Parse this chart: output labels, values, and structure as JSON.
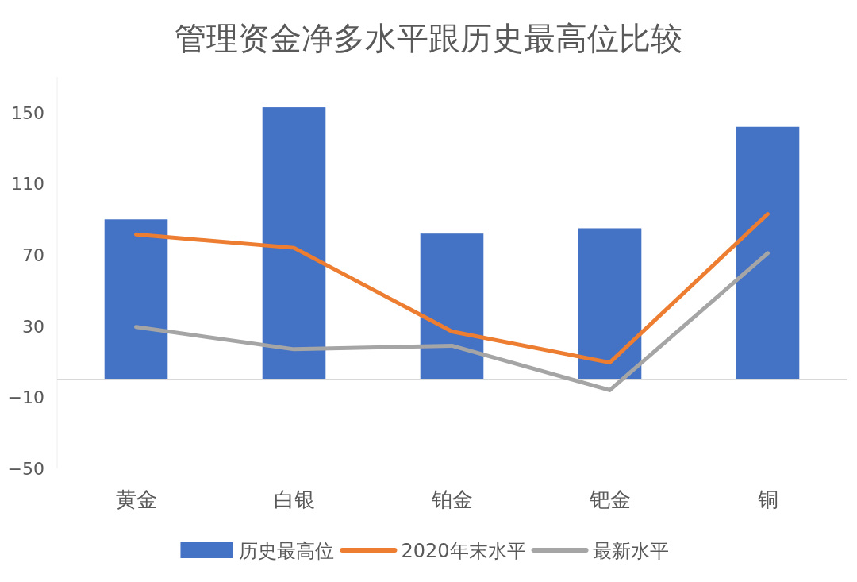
{
  "chart_data": {
    "type": "bar",
    "title": "管理资金净多水平跟历史最高位比较",
    "categories": [
      "黄金",
      "白银",
      "铂金",
      "钯金",
      "铜"
    ],
    "series": [
      {
        "name": "历史最高位",
        "color": "#4472c4",
        "values": [
          90,
          153,
          82,
          85,
          142
        ]
      },
      {
        "name": "2020年末水平",
        "type": "line",
        "color": "#ed7d31",
        "values": [
          81.5,
          74,
          27,
          9.5,
          93
        ]
      },
      {
        "name": "最新水平",
        "type": "line",
        "color": "#a5a5a5",
        "values": [
          29.5,
          17,
          19,
          -6,
          71
        ]
      }
    ],
    "ylim": [
      -50,
      170
    ],
    "yticks": [
      -50,
      -10,
      30,
      70,
      110,
      150
    ],
    "grid": false,
    "legend": "bottom",
    "marker": "none",
    "line_style": "solid"
  }
}
